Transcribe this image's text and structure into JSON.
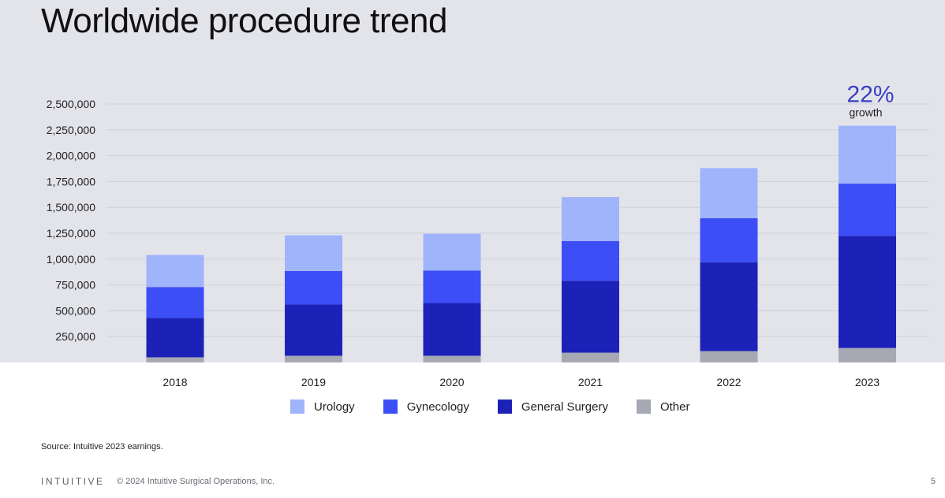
{
  "slide": {
    "title": "Worldwide procedure trend",
    "source": "Source: Intuitive 2023 earnings.",
    "logo": "INTUITIVE",
    "copyright": "© 2024 Intuitive Surgical Operations, Inc.",
    "page_number": "5"
  },
  "chart_data": {
    "type": "bar",
    "stacked": true,
    "categories": [
      "2018",
      "2019",
      "2020",
      "2021",
      "2022",
      "2023"
    ],
    "series": [
      {
        "name": "Other",
        "color": "#a6a8b4",
        "values": [
          50000,
          65000,
          65000,
          95000,
          110000,
          140000
        ]
      },
      {
        "name": "General Surgery",
        "color": "#1c22b8",
        "values": [
          380000,
          495000,
          510000,
          695000,
          860000,
          1085000
        ]
      },
      {
        "name": "Gynecology",
        "color": "#3d4ef6",
        "values": [
          300000,
          325000,
          315000,
          385000,
          425000,
          505000
        ]
      },
      {
        "name": "Urology",
        "color": "#a0b4fc",
        "values": [
          310000,
          345000,
          355000,
          425000,
          485000,
          560000
        ]
      }
    ],
    "legend_order": [
      "Urology",
      "Gynecology",
      "General Surgery",
      "Other"
    ],
    "yticks": [
      "250,000",
      "500,000",
      "750,000",
      "1,000,000",
      "1,250,000",
      "1,500,000",
      "1,750,000",
      "2,000,000",
      "2,250,000",
      "2,500,000"
    ],
    "ytick_values": [
      250000,
      500000,
      750000,
      1000000,
      1250000,
      1500000,
      1750000,
      2000000,
      2250000,
      2500000
    ],
    "ylim": [
      0,
      2500000
    ],
    "grid": true,
    "legend_position": "bottom",
    "annotation": {
      "category": "2023",
      "value": "22%",
      "label": "growth",
      "color": "#3a3fc4"
    }
  }
}
